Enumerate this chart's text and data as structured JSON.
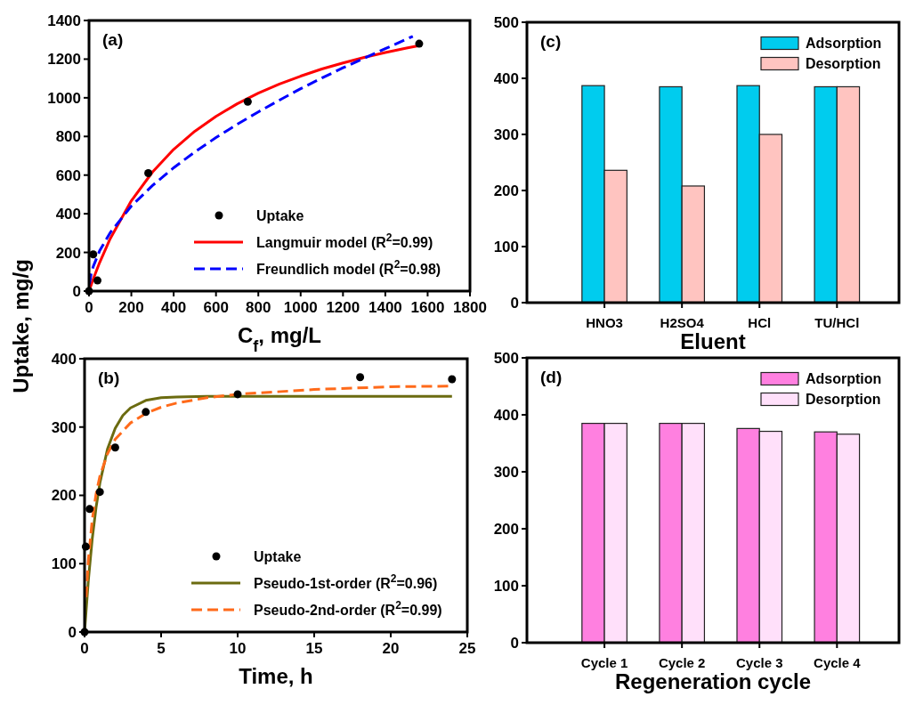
{
  "chart_data": [
    {
      "type": "line",
      "xlabel": "C$_{f}$, mg/L",
      "ylabel": "Uptake, mg/g",
      "annotations": [
        "(a)"
      ],
      "xlim": [
        0,
        1800
      ],
      "xticks": [
        0,
        200,
        400,
        600,
        800,
        1000,
        1200,
        1400,
        1600,
        1800
      ],
      "ylim": [
        0,
        1400
      ],
      "yticks": [
        0,
        200,
        400,
        600,
        800,
        1000,
        1200,
        1400
      ],
      "legend": "bottom right",
      "series": [
        {
          "name": "Uptake",
          "type": "scatter",
          "marker": "circle",
          "color": "#000000",
          "x": [
            0,
            20,
            40,
            280,
            750,
            1560
          ],
          "values": [
            0,
            190,
            55,
            610,
            980,
            1280
          ]
        },
        {
          "name": "Langmuir model (R$^{2}$=0.99)",
          "type": "line",
          "line_style": "solid",
          "color": "#ff0000",
          "x": [
            0,
            20,
            50,
            100,
            200,
            300,
            400,
            500,
            600,
            700,
            800,
            900,
            1000,
            1100,
            1200,
            1300,
            1400,
            1500,
            1560
          ],
          "values": [
            0,
            62,
            147,
            271,
            467,
            616,
            733,
            827,
            904,
            969,
            1024,
            1071,
            1112,
            1149,
            1180,
            1209,
            1234,
            1257,
            1270
          ]
        },
        {
          "name": "Freundlich model (R$^{2}$=0.98)",
          "type": "line",
          "line_style": "dashed",
          "color": "#0000ff",
          "x": [
            2,
            10,
            20,
            50,
            100,
            200,
            300,
            400,
            500,
            600,
            700,
            800,
            900,
            1000,
            1100,
            1200,
            1300,
            1400,
            1530
          ],
          "values": [
            36,
            87,
            127,
            208,
            302,
            440,
            546,
            638,
            720,
            794,
            863,
            927,
            988,
            1047,
            1102,
            1155,
            1205,
            1254,
            1318
          ]
        }
      ]
    },
    {
      "type": "line",
      "xlabel": "Time, h",
      "annotations": [
        "(b)"
      ],
      "xlim": [
        0,
        25
      ],
      "xticks": [
        0,
        5,
        10,
        15,
        20,
        25
      ],
      "ylim": [
        0,
        400
      ],
      "yticks": [
        0,
        100,
        200,
        300,
        400
      ],
      "legend": "bottom right",
      "series": [
        {
          "name": "Uptake",
          "type": "scatter",
          "marker": "circle",
          "color": "#000000",
          "x": [
            0,
            0.08,
            0.33,
            1,
            2,
            4,
            10,
            18,
            24
          ],
          "values": [
            0,
            125,
            180,
            205,
            270,
            322,
            348,
            373,
            370
          ]
        },
        {
          "name": "Pseudo-1st-order (R$^{2}$=0.96)",
          "type": "line",
          "line_style": "solid",
          "color": "#6b6b10",
          "x": [
            0,
            0.25,
            0.5,
            0.75,
            1,
            1.5,
            2,
            2.5,
            3,
            4,
            5,
            6,
            8,
            10,
            15,
            20,
            24
          ],
          "values": [
            0,
            76,
            136,
            182,
            218,
            268,
            298,
            317,
            328,
            339,
            343,
            344,
            345,
            345,
            345,
            345,
            345
          ]
        },
        {
          "name": "Pseudo-2nd-order (R$^{2}$=0.99)",
          "type": "line",
          "line_style": "dashed",
          "color": "#ff6a1a",
          "x": [
            0.1,
            0.25,
            0.5,
            0.75,
            1,
            1.5,
            2,
            3,
            4,
            5,
            6,
            8,
            10,
            15,
            20,
            24
          ],
          "values": [
            51,
            106,
            164,
            202,
            228,
            261,
            282,
            306,
            320,
            329,
            335,
            343,
            348,
            355,
            359,
            360
          ]
        }
      ]
    },
    {
      "type": "bar",
      "xlabel": "Eluent",
      "annotations": [
        "(c)"
      ],
      "categories": [
        "HNO3",
        "H2SO4",
        "HCl",
        "TU/HCl"
      ],
      "ylim": [
        0,
        500
      ],
      "yticks": [
        0,
        100,
        200,
        300,
        400,
        500
      ],
      "legend": "top right",
      "series": [
        {
          "name": "Adsorption",
          "color": "#00ccee",
          "values": [
            387,
            385,
            387,
            385
          ]
        },
        {
          "name": "Desorption",
          "color": "#ffc4c0",
          "values": [
            236,
            208,
            300,
            385
          ]
        }
      ]
    },
    {
      "type": "bar",
      "xlabel": "Regeneration cycle",
      "annotations": [
        "(d)"
      ],
      "categories": [
        "Cycle 1",
        "Cycle 2",
        "Cycle 3",
        "Cycle 4"
      ],
      "ylim": [
        0,
        500
      ],
      "yticks": [
        0,
        100,
        200,
        300,
        400,
        500
      ],
      "legend": "top right",
      "series": [
        {
          "name": "Adsorption",
          "color": "#ff80e0",
          "values": [
            385,
            385,
            376,
            370
          ]
        },
        {
          "name": "Desorption",
          "color": "#ffe0fa",
          "values": [
            385,
            385,
            371,
            366
          ]
        }
      ]
    }
  ]
}
